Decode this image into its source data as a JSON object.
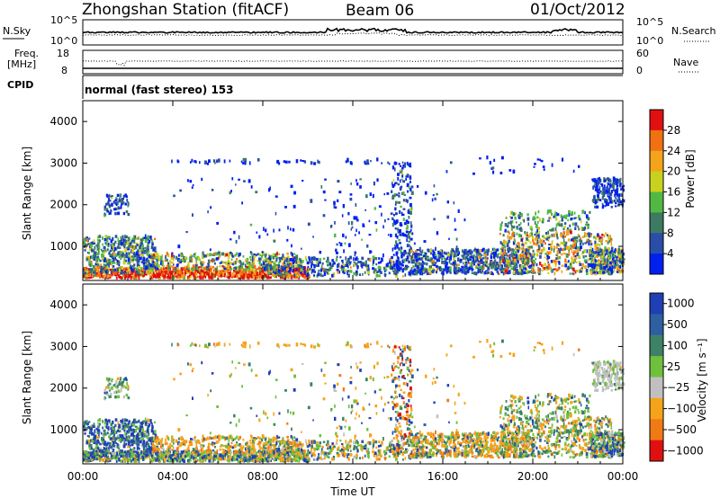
{
  "header": {
    "station": "Zhongshan Station (fitACF)",
    "beam": "Beam 06",
    "date": "01/Oct/2012"
  },
  "noise_panel": {
    "left_label": "N.Sky",
    "left_ticks": [
      "10^5",
      "10^0"
    ],
    "right_ticks": [
      "10^5",
      "10^0"
    ],
    "right_label": "N.Search"
  },
  "freq_panel": {
    "left_label_line1": "Freq.",
    "left_label_line2": "[MHz]",
    "left_ticks": [
      "18",
      "8"
    ],
    "right_ticks": [
      "60",
      "0"
    ],
    "right_label": "Nave"
  },
  "cpid": {
    "label": "CPID",
    "text": "normal (fast stereo) 153"
  },
  "chart_data": [
    {
      "type": "heatmap",
      "title": "",
      "ylabel": "Slant Range [km]",
      "y_ticks": [
        "1000",
        "2000",
        "3000",
        "4000"
      ],
      "ylim": [
        180,
        4500
      ],
      "colorbar": {
        "label": "Power [dB]",
        "ticks": [
          "4",
          "8",
          "12",
          "16",
          "20",
          "24",
          "28"
        ],
        "colors": [
          "#0020f0",
          "#2a4ea8",
          "#3d7a62",
          "#52b844",
          "#c8d21e",
          "#f5a31a",
          "#f07013",
          "#e01010"
        ]
      }
    },
    {
      "type": "heatmap",
      "title": "",
      "ylabel": "Slant Range [km]",
      "y_ticks": [
        "1000",
        "2000",
        "3000",
        "4000"
      ],
      "ylim": [
        180,
        4500
      ],
      "xlabel": "Time UT",
      "x_ticks": [
        "00:00",
        "04:00",
        "08:00",
        "12:00",
        "16:00",
        "20:00",
        "00:00"
      ],
      "colorbar": {
        "label": "Velocity [m s⁻¹]",
        "ticks": [
          "1000",
          "500",
          "100",
          "25",
          "−25",
          "−100",
          "−500",
          "−1000"
        ],
        "colors": [
          "#1f3fb4",
          "#2e5fa0",
          "#3d8266",
          "#6fc03c",
          "#c0c0c0",
          "#f5a31a",
          "#f07a15",
          "#e01010"
        ]
      }
    }
  ]
}
